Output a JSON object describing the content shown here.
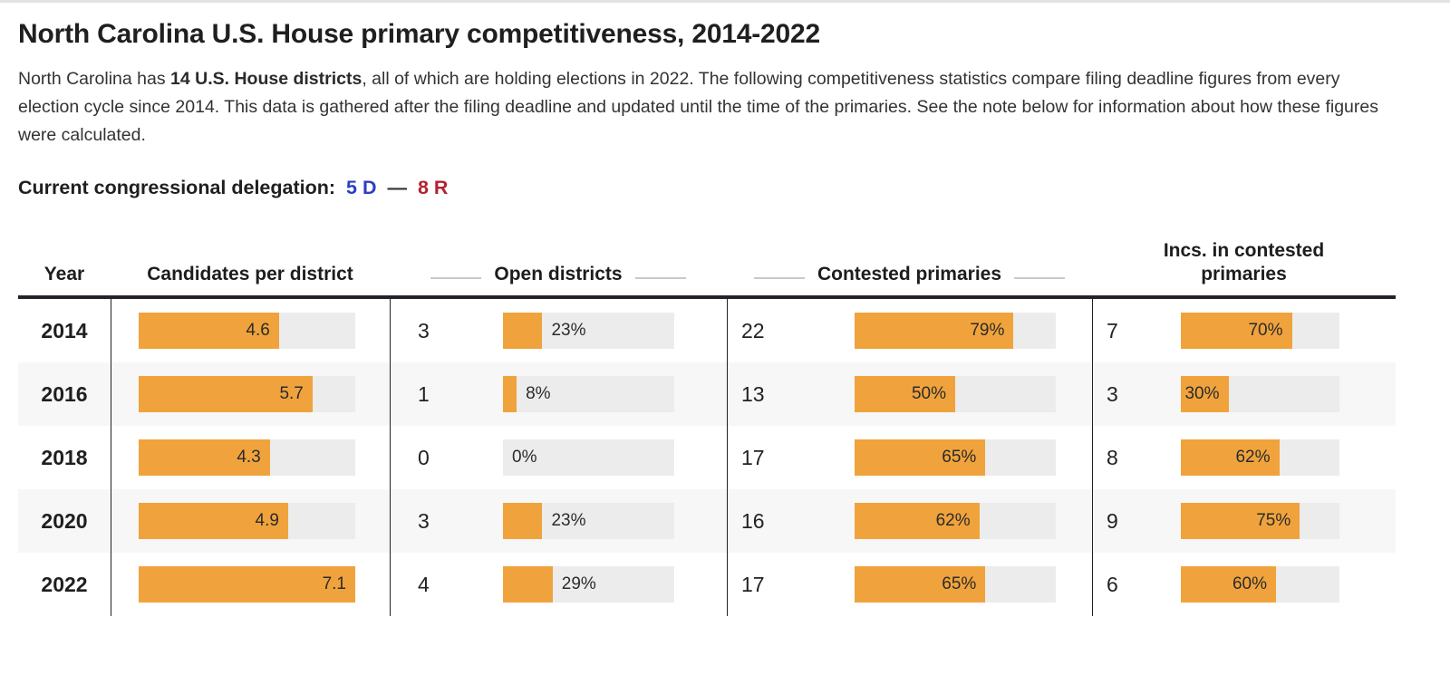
{
  "page": {
    "title": "North Carolina U.S. House primary competitiveness, 2014-2022",
    "intro": {
      "text_before_bold": "North Carolina has ",
      "bold_text": "14 U.S. House districts",
      "text_after_bold": ", all of which are holding elections in 2022. The following competitiveness statistics compare filing deadline figures from every election cycle since 2014. This data is gathered after the filing deadline and updated until the time of the primaries. See the note below for information about how these figures were calculated."
    },
    "delegation": {
      "label": "Current congressional delegation:",
      "dem": "5 D",
      "separator": "—",
      "rep": "8 R",
      "dem_color": "#2d3fc4",
      "rep_color": "#b22230"
    }
  },
  "table_headers": {
    "year": "Year",
    "candidates": "Candidates per district",
    "open": "Open districts",
    "contested": "Contested primaries",
    "incs": "Incs. in contested primaries"
  },
  "chart_data": {
    "type": "bar",
    "title": "North Carolina U.S. House primary competitiveness, 2014-2022",
    "bar_color": "#f0a33c",
    "track_color": "#ececec",
    "candidates_scale_max": 7.1,
    "percent_scale_max": 100,
    "label_inside_threshold_pct": 30,
    "categories": [
      "2014",
      "2016",
      "2018",
      "2020",
      "2022"
    ],
    "series": [
      {
        "name": "Candidates per district",
        "values": [
          4.6,
          5.7,
          4.3,
          4.9,
          7.1
        ]
      },
      {
        "name": "Open districts (count)",
        "values": [
          3,
          1,
          0,
          3,
          4
        ]
      },
      {
        "name": "Open districts (%)",
        "values": [
          23,
          8,
          0,
          23,
          29
        ]
      },
      {
        "name": "Contested primaries (count)",
        "values": [
          22,
          13,
          17,
          16,
          17
        ]
      },
      {
        "name": "Contested primaries (%)",
        "values": [
          79,
          50,
          65,
          62,
          65
        ]
      },
      {
        "name": "Incs. in contested primaries (count)",
        "values": [
          7,
          3,
          8,
          9,
          6
        ]
      },
      {
        "name": "Incs. in contested primaries (%)",
        "values": [
          70,
          30,
          62,
          75,
          60
        ]
      }
    ],
    "rows": [
      {
        "year": "2014",
        "candidates": 4.6,
        "open_count": 3,
        "open_pct": 23,
        "contested_count": 22,
        "contested_pct": 79,
        "incs_count": 7,
        "incs_pct": 70
      },
      {
        "year": "2016",
        "candidates": 5.7,
        "open_count": 1,
        "open_pct": 8,
        "contested_count": 13,
        "contested_pct": 50,
        "incs_count": 3,
        "incs_pct": 30
      },
      {
        "year": "2018",
        "candidates": 4.3,
        "open_count": 0,
        "open_pct": 0,
        "contested_count": 17,
        "contested_pct": 65,
        "incs_count": 8,
        "incs_pct": 62
      },
      {
        "year": "2020",
        "candidates": 4.9,
        "open_count": 3,
        "open_pct": 23,
        "contested_count": 16,
        "contested_pct": 62,
        "incs_count": 9,
        "incs_pct": 75
      },
      {
        "year": "2022",
        "candidates": 7.1,
        "open_count": 4,
        "open_pct": 29,
        "contested_count": 17,
        "contested_pct": 65,
        "incs_count": 6,
        "incs_pct": 60
      }
    ]
  }
}
